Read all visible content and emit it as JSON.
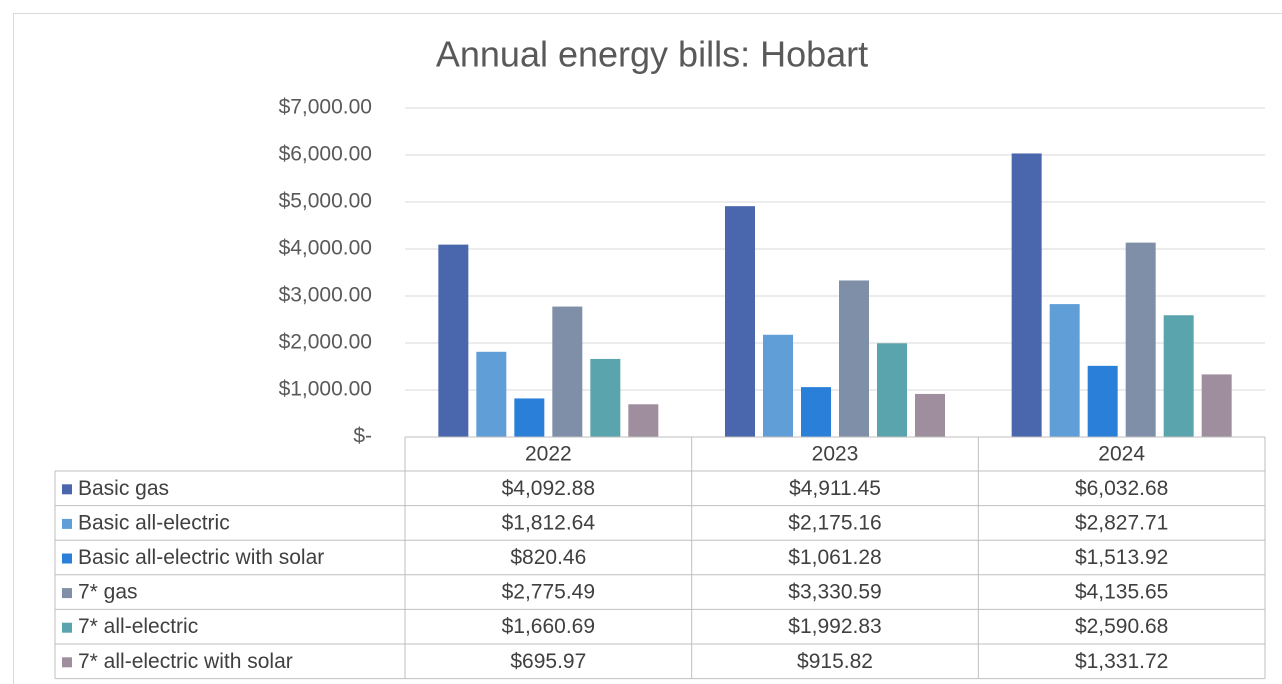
{
  "chart_data": {
    "type": "bar",
    "title": "Annual energy bills: Hobart",
    "categories": [
      "2022",
      "2023",
      "2024"
    ],
    "series": [
      {
        "name": "Basic gas",
        "color": "#4a66ad",
        "values": [
          4092.88,
          4911.45,
          6032.68
        ],
        "value_labels": [
          "$4,092.88",
          "$4,911.45",
          "$6,032.68"
        ]
      },
      {
        "name": "Basic all-electric",
        "color": "#5f9ed6",
        "values": [
          1812.64,
          2175.16,
          2827.71
        ],
        "value_labels": [
          "$1,812.64",
          "$2,175.16",
          "$2,827.71"
        ]
      },
      {
        "name": "Basic all-electric with solar",
        "color": "#2a7fd9",
        "values": [
          820.46,
          1061.28,
          1513.92
        ],
        "value_labels": [
          "$820.46",
          "$1,061.28",
          "$1,513.92"
        ]
      },
      {
        "name": "7* gas",
        "color": "#7f8fa8",
        "values": [
          2775.49,
          3330.59,
          4135.65
        ],
        "value_labels": [
          "$2,775.49",
          "$3,330.59",
          "$4,135.65"
        ]
      },
      {
        "name": "7* all-electric",
        "color": "#5aa5ad",
        "values": [
          1660.69,
          1992.83,
          2590.68
        ],
        "value_labels": [
          "$1,660.69",
          "$1,992.83",
          "$2,590.68"
        ]
      },
      {
        "name": "7* all-electric with solar",
        "color": "#9e8e9e",
        "values": [
          695.97,
          915.82,
          1331.72
        ],
        "value_labels": [
          "$695.97",
          "$915.82",
          "$1,331.72"
        ]
      }
    ],
    "ylim": [
      0,
      7000
    ],
    "yticks": [
      {
        "value": 0,
        "label": "$-"
      },
      {
        "value": 1000,
        "label": "$1,000.00"
      },
      {
        "value": 2000,
        "label": "$2,000.00"
      },
      {
        "value": 3000,
        "label": "$3,000.00"
      },
      {
        "value": 4000,
        "label": "$4,000.00"
      },
      {
        "value": 5000,
        "label": "$5,000.00"
      },
      {
        "value": 6000,
        "label": "$6,000.00"
      },
      {
        "value": 7000,
        "label": "$7,000.00"
      }
    ],
    "grid": true
  }
}
